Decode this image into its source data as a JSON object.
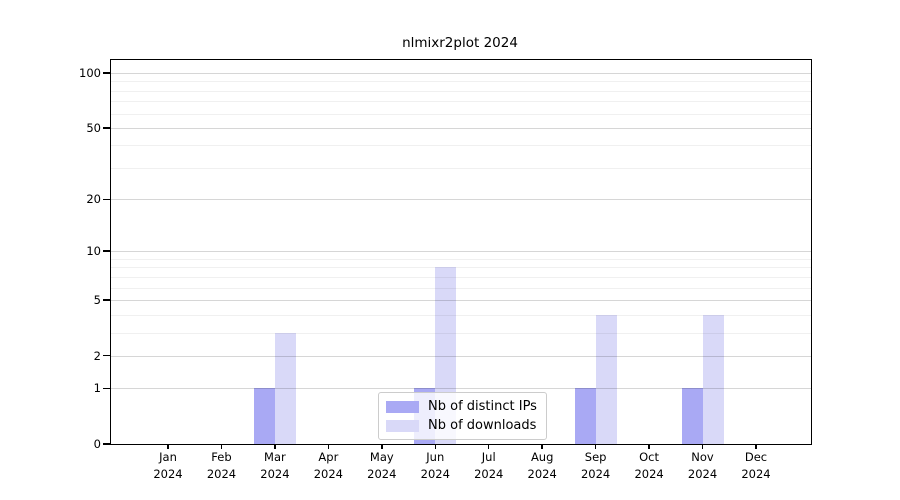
{
  "title": "nlmixr2plot 2024",
  "style": {
    "background": "#ffffff",
    "axis_color": "#000000",
    "grid_major_color": "rgba(0,0,0,0.16)",
    "grid_minor_color": "rgba(0,0,0,0.06)",
    "bar_color_distinct_ips": "#a9a9f4",
    "bar_color_downloads": "#d9d9f8",
    "legend_border_color": "#cccccc"
  },
  "chart_data": {
    "type": "bar",
    "title": "nlmixr2plot 2024",
    "categories": [
      "Jan 2024",
      "Feb 2024",
      "Mar 2024",
      "Apr 2024",
      "May 2024",
      "Jun 2024",
      "Jul 2024",
      "Aug 2024",
      "Sep 2024",
      "Oct 2024",
      "Nov 2024",
      "Dec 2024"
    ],
    "x_months": [
      "Jan",
      "Feb",
      "Mar",
      "Apr",
      "May",
      "Jun",
      "Jul",
      "Aug",
      "Sep",
      "Oct",
      "Nov",
      "Dec"
    ],
    "x_year": "2024",
    "series": [
      {
        "name": "Nb of distinct IPs",
        "color": "#a9a9f4",
        "values": [
          0,
          0,
          1,
          0,
          0,
          1,
          0,
          0,
          1,
          0,
          1,
          0
        ]
      },
      {
        "name": "Nb of downloads",
        "color": "#d9d9f8",
        "values": [
          0,
          0,
          3,
          0,
          0,
          8,
          0,
          0,
          4,
          0,
          4,
          0
        ]
      }
    ],
    "xlabel": "",
    "ylabel": "",
    "yscale": "log1p",
    "ylim": [
      0,
      100
    ],
    "y_ticks": [
      0,
      1,
      2,
      5,
      10,
      20,
      50,
      100
    ],
    "y_minor_gridlines": [
      3,
      4,
      6,
      7,
      8,
      9,
      30,
      40,
      60,
      70,
      80,
      90
    ],
    "grid": true,
    "legend_position": "inside-bottom-center"
  }
}
